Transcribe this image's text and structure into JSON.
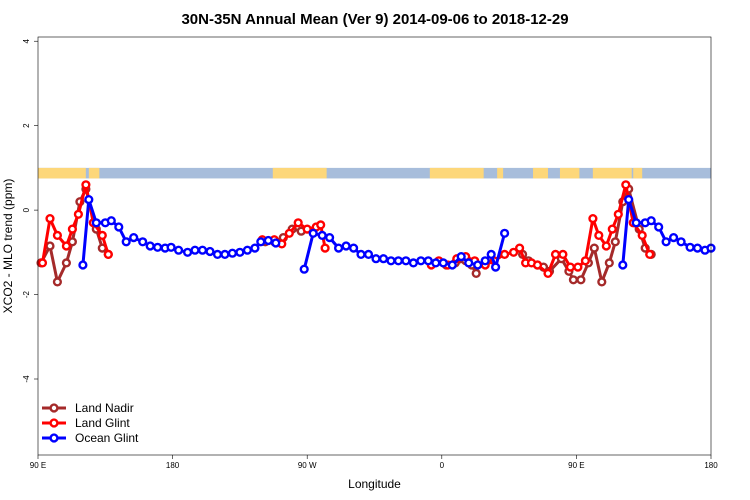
{
  "chart_data": {
    "type": "line",
    "title": "30N-35N Annual Mean (Ver 9)   2014-09-06 to 2018-12-29",
    "xlabel": "Longitude",
    "ylabel": "XCO2 - MLO trend (ppm)",
    "xlim": [
      0,
      450
    ],
    "ylim": [
      -5.8,
      4.1
    ],
    "x_ticks": [
      {
        "value": 0,
        "label": "90 E"
      },
      {
        "value": 90,
        "label": "180"
      },
      {
        "value": 180,
        "label": "90 W"
      },
      {
        "value": 270,
        "label": "0"
      },
      {
        "value": 360,
        "label": "90 E"
      },
      {
        "value": 450,
        "label": "180"
      }
    ],
    "y_ticks": [
      {
        "value": 4,
        "label": "4"
      },
      {
        "value": 2,
        "label": "2"
      },
      {
        "value": 0,
        "label": "0"
      },
      {
        "value": -2,
        "label": "-2"
      },
      {
        "value": -4,
        "label": "-4"
      }
    ],
    "grid": false,
    "legend_position": "bottom-left",
    "land_mask": {
      "y_range": [
        0.75,
        1.0
      ],
      "land_color": "#fdd77a",
      "ocean_color": "#a7bddb",
      "land_segments": [
        [
          0,
          32
        ],
        [
          34,
          41
        ],
        [
          157,
          193
        ],
        [
          262,
          298
        ],
        [
          307,
          311
        ],
        [
          331,
          341
        ],
        [
          349,
          362
        ],
        [
          371,
          397
        ],
        [
          398,
          404
        ]
      ]
    },
    "series": [
      {
        "name": "Land Nadir",
        "color": "#a52a2a",
        "segments": [
          [
            [
              2,
              -1.25
            ],
            [
              8,
              -0.85
            ],
            [
              13,
              -1.7
            ],
            [
              19,
              -1.25
            ],
            [
              23,
              -0.75
            ],
            [
              28,
              0.2
            ],
            [
              32,
              0.5
            ],
            [
              39,
              -0.45
            ],
            [
              43,
              -0.9
            ],
            [
              47,
              -1.05
            ]
          ],
          [
            [
              152,
              -0.75
            ],
            [
              158,
              -0.75
            ],
            [
              164,
              -0.65
            ],
            [
              170,
              -0.45
            ],
            [
              176,
              -0.5
            ]
          ],
          [
            [
              273,
              -1.3
            ],
            [
              279,
              -1.25
            ],
            [
              286,
              -1.2
            ],
            [
              290,
              -1.3
            ],
            [
              293,
              -1.5
            ]
          ],
          [
            [
              324,
              -1.05
            ],
            [
              328,
              -1.2
            ],
            [
              334,
              -1.3
            ],
            [
              338,
              -1.35
            ],
            [
              342,
              -1.45
            ],
            [
              350,
              -1.15
            ],
            [
              355,
              -1.45
            ],
            [
              358,
              -1.65
            ],
            [
              363,
              -1.65
            ],
            [
              368,
              -1.25
            ],
            [
              372,
              -0.9
            ],
            [
              377,
              -1.7
            ],
            [
              382,
              -1.25
            ],
            [
              386,
              -0.75
            ],
            [
              391,
              0.2
            ],
            [
              395,
              0.5
            ],
            [
              402,
              -0.45
            ],
            [
              406,
              -0.9
            ],
            [
              410,
              -1.05
            ]
          ]
        ]
      },
      {
        "name": "Land Glint",
        "color": "#ff0000",
        "segments": [
          [
            [
              3,
              -1.25
            ],
            [
              8,
              -0.2
            ],
            [
              13,
              -0.6
            ],
            [
              19,
              -0.85
            ],
            [
              23,
              -0.45
            ],
            [
              27,
              -0.1
            ],
            [
              32,
              0.6
            ],
            [
              37,
              -0.3
            ],
            [
              43,
              -0.6
            ],
            [
              47,
              -1.05
            ]
          ],
          [
            [
              150,
              -0.7
            ],
            [
              158,
              -0.7
            ],
            [
              163,
              -0.8
            ],
            [
              168,
              -0.55
            ],
            [
              174,
              -0.3
            ],
            [
              180,
              -0.45
            ],
            [
              186,
              -0.4
            ],
            [
              189,
              -0.35
            ],
            [
              192,
              -0.9
            ]
          ],
          [
            [
              263,
              -1.3
            ],
            [
              268,
              -1.2
            ],
            [
              274,
              -1.3
            ],
            [
              280,
              -1.15
            ],
            [
              286,
              -1.1
            ],
            [
              292,
              -1.2
            ],
            [
              299,
              -1.3
            ],
            [
              305,
              -1.2
            ],
            [
              312,
              -1.05
            ],
            [
              318,
              -1.0
            ],
            [
              322,
              -0.9
            ],
            [
              326,
              -1.25
            ],
            [
              330,
              -1.25
            ],
            [
              334,
              -1.3
            ],
            [
              341,
              -1.5
            ],
            [
              346,
              -1.05
            ],
            [
              351,
              -1.05
            ],
            [
              356,
              -1.35
            ],
            [
              361,
              -1.35
            ],
            [
              366,
              -1.2
            ],
            [
              371,
              -0.2
            ],
            [
              375,
              -0.6
            ],
            [
              380,
              -0.85
            ],
            [
              384,
              -0.45
            ],
            [
              388,
              -0.1
            ],
            [
              393,
              0.6
            ],
            [
              398,
              -0.3
            ],
            [
              404,
              -0.6
            ],
            [
              409,
              -1.05
            ]
          ]
        ]
      },
      {
        "name": "Ocean Glint",
        "color": "#0000ff",
        "segments": [
          [
            [
              30,
              -1.3
            ],
            [
              34,
              0.25
            ],
            [
              39,
              -0.3
            ],
            [
              45,
              -0.3
            ],
            [
              49,
              -0.25
            ],
            [
              54,
              -0.4
            ],
            [
              59,
              -0.75
            ],
            [
              64,
              -0.65
            ],
            [
              70,
              -0.75
            ],
            [
              75,
              -0.85
            ],
            [
              80,
              -0.88
            ],
            [
              85,
              -0.9
            ],
            [
              89,
              -0.88
            ],
            [
              94,
              -0.95
            ],
            [
              100,
              -1.0
            ],
            [
              105,
              -0.95
            ],
            [
              110,
              -0.95
            ],
            [
              115,
              -0.98
            ],
            [
              120,
              -1.05
            ],
            [
              125,
              -1.05
            ],
            [
              130,
              -1.02
            ],
            [
              135,
              -1.0
            ],
            [
              140,
              -0.95
            ],
            [
              145,
              -0.9
            ],
            [
              149,
              -0.75
            ],
            [
              154,
              -0.72
            ],
            [
              159,
              -0.78
            ]
          ],
          [
            [
              178,
              -1.4
            ],
            [
              184,
              -0.55
            ],
            [
              190,
              -0.6
            ],
            [
              195,
              -0.65
            ],
            [
              201,
              -0.9
            ],
            [
              206,
              -0.85
            ],
            [
              211,
              -0.9
            ],
            [
              216,
              -1.05
            ],
            [
              221,
              -1.05
            ],
            [
              226,
              -1.15
            ],
            [
              231,
              -1.15
            ],
            [
              236,
              -1.2
            ],
            [
              241,
              -1.2
            ],
            [
              246,
              -1.2
            ],
            [
              251,
              -1.25
            ],
            [
              256,
              -1.2
            ],
            [
              261,
              -1.2
            ],
            [
              266,
              -1.25
            ],
            [
              271,
              -1.25
            ],
            [
              277,
              -1.3
            ],
            [
              283,
              -1.1
            ],
            [
              288,
              -1.25
            ],
            [
              294,
              -1.3
            ],
            [
              299,
              -1.2
            ],
            [
              303,
              -1.05
            ],
            [
              306,
              -1.35
            ],
            [
              312,
              -0.55
            ]
          ],
          [
            [
              391,
              -1.3
            ],
            [
              395,
              0.25
            ],
            [
              400,
              -0.3
            ],
            [
              406,
              -0.3
            ],
            [
              410,
              -0.25
            ],
            [
              415,
              -0.4
            ],
            [
              420,
              -0.75
            ],
            [
              425,
              -0.65
            ],
            [
              430,
              -0.75
            ],
            [
              436,
              -0.88
            ],
            [
              441,
              -0.9
            ],
            [
              446,
              -0.95
            ],
            [
              450,
              -0.9
            ]
          ]
        ]
      }
    ]
  }
}
